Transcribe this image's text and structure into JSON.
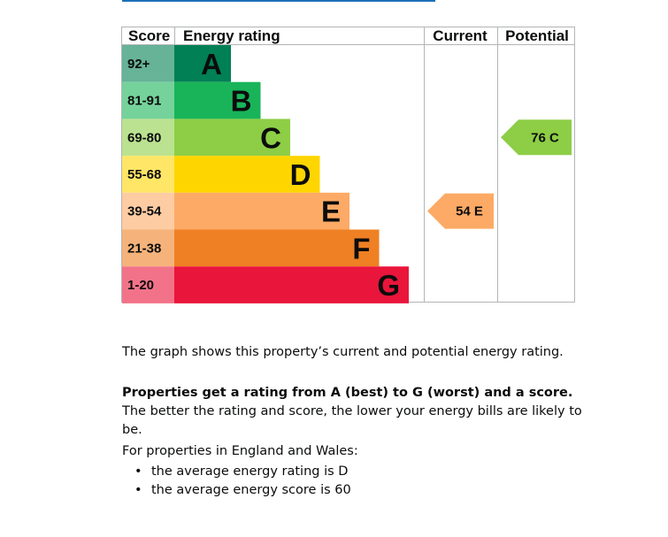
{
  "chart_data": {
    "type": "bar",
    "headers": {
      "score": "Score",
      "rating": "Energy rating",
      "current": "Current",
      "potential": "Potential"
    },
    "bands": [
      {
        "score": "92+",
        "letter": "A",
        "color": "#008054",
        "score_color": "#66b398"
      },
      {
        "score": "81-91",
        "letter": "B",
        "color": "#19b459",
        "score_color": "#75d29b"
      },
      {
        "score": "69-80",
        "letter": "C",
        "color": "#8dce46",
        "score_color": "#bbe290"
      },
      {
        "score": "55-68",
        "letter": "D",
        "color": "#ffd500",
        "score_color": "#ffe666"
      },
      {
        "score": "39-54",
        "letter": "E",
        "color": "#fcaa65",
        "score_color": "#fdcca3"
      },
      {
        "score": "21-38",
        "letter": "F",
        "color": "#ef8023",
        "score_color": "#f5b37b"
      },
      {
        "score": "1-20",
        "letter": "G",
        "color": "#e9153b",
        "score_color": "#f27389"
      }
    ],
    "current": {
      "value": 54,
      "letter": "E",
      "label": "54  E",
      "color": "#fcaa65"
    },
    "potential": {
      "value": 76,
      "letter": "C",
      "label": "76  C",
      "color": "#8dce46"
    }
  },
  "description": {
    "p1": "The graph shows this property’s current and potential energy rating.",
    "p2_bold": "Properties get a rating from A (best) to G (worst) and a score.",
    "p2_rest": " The better the rating and score, the lower your energy bills are likely to be.",
    "p3": "For properties in England and Wales:",
    "bullets": [
      "the average energy rating is D",
      "the average energy score is 60"
    ]
  }
}
